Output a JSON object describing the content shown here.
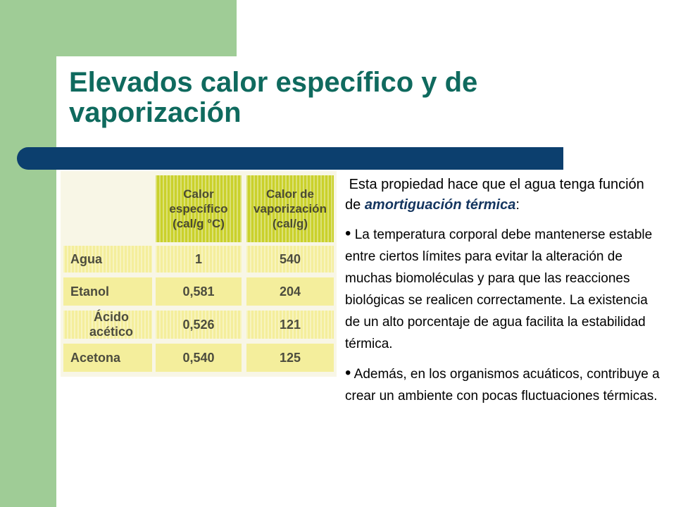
{
  "slide": {
    "title": "Elevados calor específico y de vaporización"
  },
  "table": {
    "headers": [
      "Calor específico (cal/g °C)",
      "Calor de vaporización (cal/g)"
    ],
    "rows": [
      {
        "label": "Agua",
        "specific_heat": "1",
        "vaporization": "540"
      },
      {
        "label": "Etanol",
        "specific_heat": "0,581",
        "vaporization": "204"
      },
      {
        "label": "Ácido acético",
        "specific_heat": "0,526",
        "vaporization": "121"
      },
      {
        "label": "Acetona",
        "specific_heat": "0,540",
        "vaporization": "125"
      }
    ]
  },
  "text": {
    "intro_before": "Esta propiedad hace que el agua tenga función de ",
    "intro_emphasis": "amortiguación térmica",
    "intro_after": ":",
    "bullet_symbol": "•",
    "bullets": [
      "La temperatura corporal debe mantenerse estable entre ciertos límites para evitar la alteración de muchas biomoléculas y para que las reacciones biológicas se realicen correctamente. La existencia de un alto porcentaje de agua facilita la estabilidad térmica.",
      "Además, en los organismos acuáticos, contribuye a crear un ambiente con pocas fluctuaciones térmicas."
    ]
  },
  "colors": {
    "side_band": "#9fcc96",
    "title": "#0f6a5e",
    "title_bar": "#0c3f6e",
    "table_header": "#cad12b",
    "table_cell": "#f4ee9c",
    "emphasis": "#14355f"
  }
}
